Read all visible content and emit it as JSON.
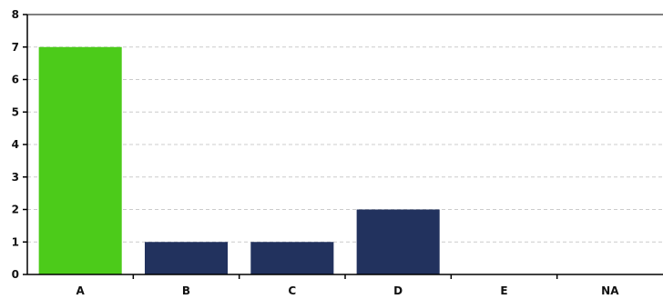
{
  "chart_data": {
    "type": "bar",
    "categories": [
      "A",
      "B",
      "C",
      "D",
      "E",
      "NA"
    ],
    "values": [
      7,
      1,
      1,
      2,
      0,
      0
    ],
    "ylim": [
      0,
      8
    ],
    "yticks": [
      0,
      1,
      2,
      3,
      4,
      5,
      6,
      7,
      8
    ],
    "grid": true,
    "colors": {
      "highlight": "#4ccb1a",
      "bar": "#22325e",
      "grid": "#cccccc",
      "axis": "#000000"
    },
    "highlight_index": 0
  }
}
